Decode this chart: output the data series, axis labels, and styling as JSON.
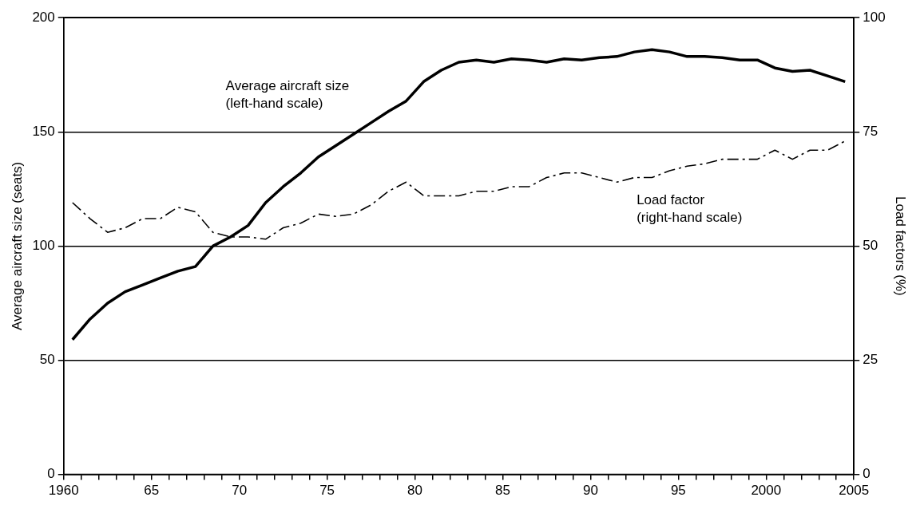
{
  "chart_data": {
    "type": "line",
    "xlabel": null,
    "ylabel": "Average aircraft size (seats)",
    "y2label": "Load factors (%)",
    "x": [
      1960.5,
      1961.5,
      1962.5,
      1963.5,
      1964.5,
      1965.5,
      1966.5,
      1967.5,
      1968.5,
      1969.5,
      1970.5,
      1971.5,
      1972.5,
      1973.5,
      1974.5,
      1975.5,
      1976.5,
      1977.5,
      1978.5,
      1979.5,
      1980.5,
      1981.5,
      1982.5,
      1983.5,
      1984.5,
      1985.5,
      1986.5,
      1987.5,
      1988.5,
      1989.5,
      1990.5,
      1991.5,
      1992.5,
      1993.5,
      1994.5,
      1995.5,
      1996.5,
      1997.5,
      1998.5,
      1999.5,
      2000.5,
      2001.5,
      2002.5,
      2003.5,
      2004.5
    ],
    "series": [
      {
        "color": "#000000",
        "line_style": "solid",
        "values": [
          59,
          68,
          75,
          80,
          83,
          86,
          89,
          91,
          100,
          104,
          109,
          119,
          126,
          132,
          139,
          144,
          149,
          154,
          159,
          163.5,
          172,
          177,
          180.5,
          181.5,
          180.5,
          182,
          181.5,
          180.5,
          182,
          181.5,
          182.5,
          183,
          185,
          186,
          185,
          183,
          183,
          182.5,
          181.5,
          181.5,
          178,
          176.5,
          177,
          174.5,
          172
        ]
      },
      {
        "color": "#000000",
        "line_style": "dashed",
        "axis": "y2",
        "values": [
          59.5,
          56,
          53,
          54,
          56,
          56,
          58.5,
          57.5,
          53,
          52,
          52,
          51.5,
          54,
          55,
          57,
          56.5,
          57,
          59,
          62,
          64,
          61,
          61,
          61,
          62,
          62,
          63,
          63,
          65,
          66,
          66,
          65,
          64,
          65,
          65,
          66.5,
          67.5,
          68,
          69,
          69,
          69,
          71,
          69,
          71,
          71,
          73
        ]
      }
    ],
    "annotations": [
      "Average aircraft size\n(left-hand scale)",
      "Load factor\n(right-hand scale)"
    ],
    "xlim": [
      1960,
      2005
    ],
    "xticks": [
      1960,
      {
        "value": 1961,
        "label": null
      },
      {
        "value": 1962,
        "label": null
      },
      {
        "value": 1963,
        "label": null
      },
      {
        "value": 1964,
        "label": null
      },
      {
        "value": 1965,
        "label": "65"
      },
      {
        "value": 1966,
        "label": null
      },
      {
        "value": 1967,
        "label": null
      },
      {
        "value": 1968,
        "label": null
      },
      {
        "value": 1969,
        "label": null
      },
      {
        "value": 1970,
        "label": "70"
      },
      {
        "value": 1971,
        "label": null
      },
      {
        "value": 1972,
        "label": null
      },
      {
        "value": 1973,
        "label": null
      },
      {
        "value": 1974,
        "label": null
      },
      {
        "value": 1975,
        "label": "75"
      },
      {
        "value": 1976,
        "label": null
      },
      {
        "value": 1977,
        "label": null
      },
      {
        "value": 1978,
        "label": null
      },
      {
        "value": 1979,
        "label": null
      },
      {
        "value": 1980,
        "label": "80"
      },
      {
        "value": 1981,
        "label": null
      },
      {
        "value": 1982,
        "label": null
      },
      {
        "value": 1983,
        "label": null
      },
      {
        "value": 1984,
        "label": null
      },
      {
        "value": 1985,
        "label": "85"
      },
      {
        "value": 1986,
        "label": null
      },
      {
        "value": 1987,
        "label": null
      },
      {
        "value": 1988,
        "label": null
      },
      {
        "value": 1989,
        "label": null
      },
      {
        "value": 1990,
        "label": "90"
      },
      {
        "value": 1991,
        "label": null
      },
      {
        "value": 1992,
        "label": null
      },
      {
        "value": 1993,
        "label": null
      },
      {
        "value": 1994,
        "label": null
      },
      {
        "value": 1995,
        "label": "95"
      },
      {
        "value": 1996,
        "label": null
      },
      {
        "value": 1997,
        "label": null
      },
      {
        "value": 1998,
        "label": null
      },
      {
        "value": 1999,
        "label": null
      },
      2000,
      {
        "value": 2001,
        "label": null
      },
      {
        "value": 2002,
        "label": null
      },
      {
        "value": 2003,
        "label": null
      },
      {
        "value": 2004,
        "label": null
      },
      2005
    ],
    "ylim": [
      0,
      200
    ],
    "yticks": [
      0,
      50,
      100,
      150,
      200
    ],
    "y2lim": [
      0,
      100
    ],
    "y2ticks": [
      0,
      25,
      50,
      75,
      100
    ],
    "grid": "y",
    "legend": false,
    "marker": "none"
  }
}
